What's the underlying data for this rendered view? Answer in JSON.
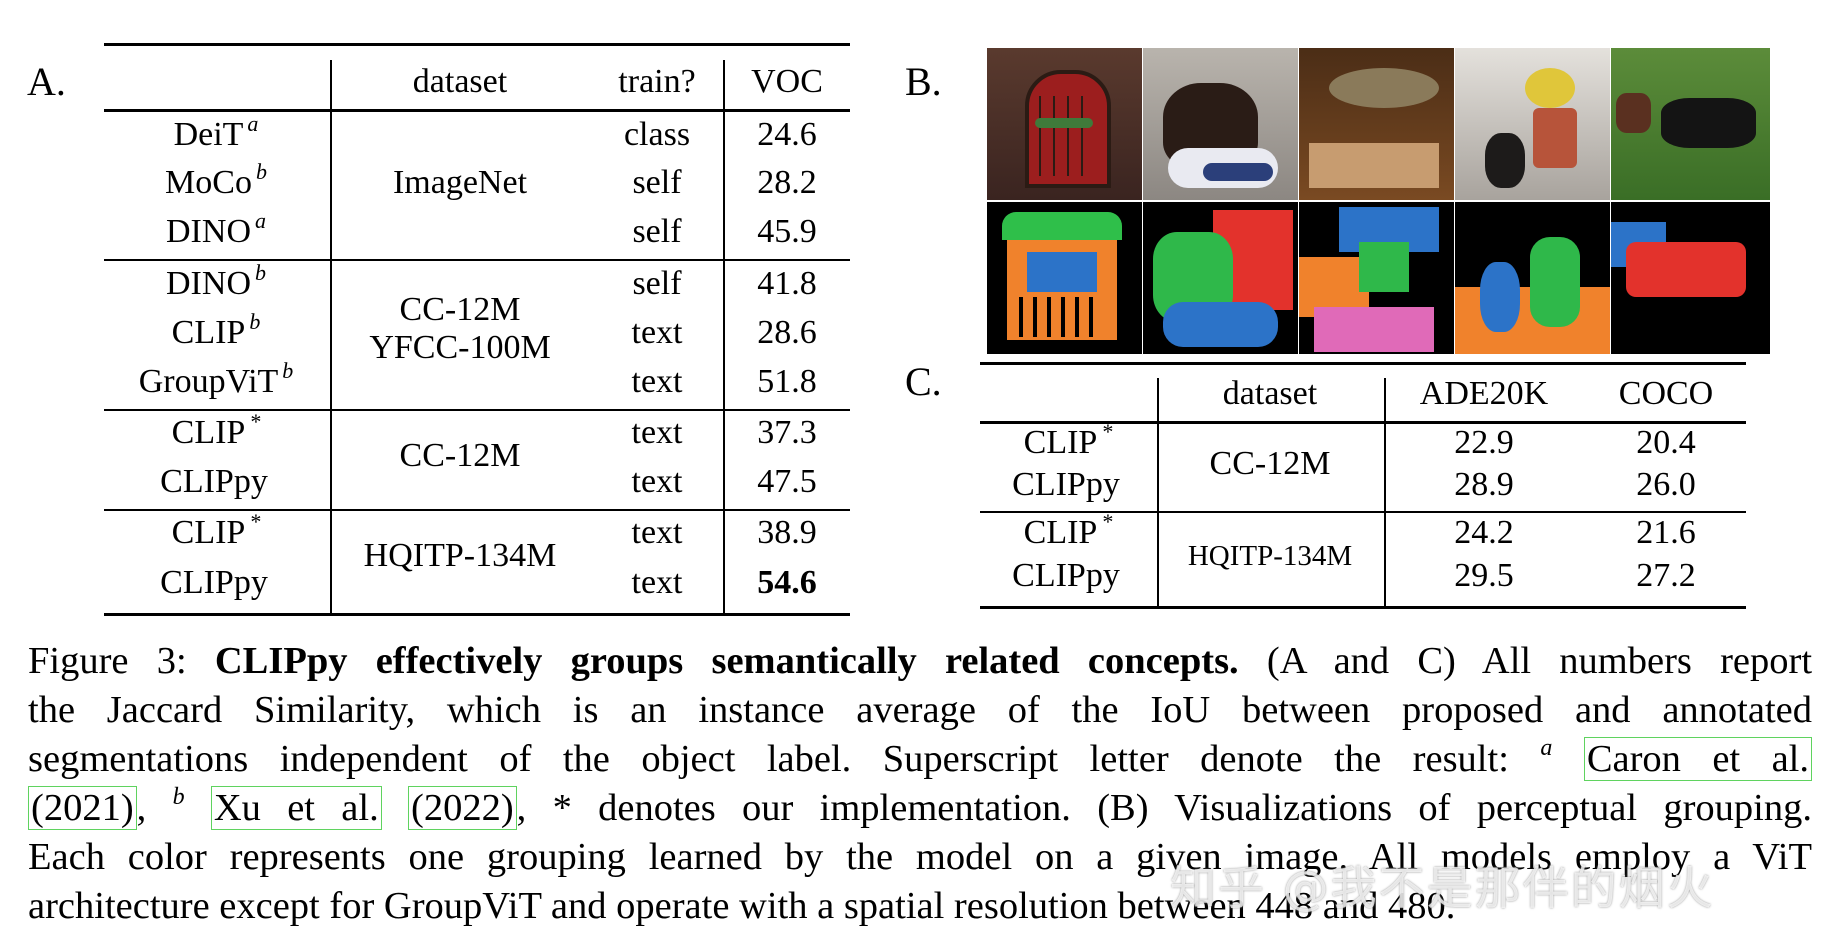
{
  "panels": {
    "a": "A.",
    "b": "B.",
    "c": "C."
  },
  "table_a": {
    "headers": {
      "dataset": "dataset",
      "train": "train?",
      "metric": "VOC"
    },
    "groups": [
      {
        "dataset": [
          "ImageNet"
        ],
        "rows": [
          {
            "model": "DeiT",
            "sup": "a",
            "train": "class",
            "voc": "24.6"
          },
          {
            "model": "MoCo",
            "sup": "b",
            "train": "self",
            "voc": "28.2"
          },
          {
            "model": "DINO",
            "sup": "a",
            "train": "self",
            "voc": "45.9"
          }
        ]
      },
      {
        "dataset": [
          "CC-12M",
          "YFCC-100M"
        ],
        "rows": [
          {
            "model": "DINO",
            "sup": "b",
            "train": "self",
            "voc": "41.8"
          },
          {
            "model": "CLIP",
            "sup": "b",
            "train": "text",
            "voc": "28.6"
          },
          {
            "model": "GroupViT",
            "sup": "b",
            "train": "text",
            "voc": "51.8"
          }
        ]
      },
      {
        "dataset": [
          "CC-12M"
        ],
        "rows": [
          {
            "model": "CLIP",
            "sup": "*",
            "train": "text",
            "voc": "37.3"
          },
          {
            "model": "CLIPpy",
            "sup": "",
            "train": "text",
            "voc": "47.5"
          }
        ]
      },
      {
        "dataset": [
          "HQITP-134M"
        ],
        "rows": [
          {
            "model": "CLIP",
            "sup": "*",
            "train": "text",
            "voc": "38.9"
          },
          {
            "model": "CLIPpy",
            "sup": "",
            "train": "text",
            "voc": "54.6"
          }
        ]
      }
    ]
  },
  "table_c": {
    "headers": {
      "dataset": "dataset",
      "ade": "ADE20K",
      "coco": "COCO"
    },
    "groups": [
      {
        "dataset": "CC-12M",
        "rows": [
          {
            "model": "CLIP",
            "sup": "*",
            "ade": "22.9",
            "coco": "20.4"
          },
          {
            "model": "CLIPpy",
            "sup": "",
            "ade": "28.9",
            "coco": "26.0"
          }
        ]
      },
      {
        "dataset": "HQITP-134M",
        "rows": [
          {
            "model": "CLIP",
            "sup": "*",
            "ade": "24.2",
            "coco": "21.6"
          },
          {
            "model": "CLIPpy",
            "sup": "",
            "ade": "29.5",
            "coco": "27.2"
          }
        ]
      }
    ]
  },
  "caption": {
    "fig": "Figure 3:",
    "title": "CLIPpy effectively groups semantically related concepts.",
    "l1_rest": "(A and C) All numbers report",
    "l2": "the Jaccard Similarity, which is an instance average of the IoU between proposed and annotated",
    "l3_pre": "segmentations independent of the object label. Superscript letter denote the result:",
    "sup_a": "a",
    "cite1_a": "Caron et al.",
    "cite1_b": "(2021)",
    "sup_b": "b",
    "cite2_a": "Xu et al.",
    "cite2_b": "(2022)",
    "l4_rest": ", * denotes our implementation. (B) Visualizations of perceptual grouping.",
    "l5": "Each color represents one grouping learned by the model on a given image. All models employ a ViT",
    "l6": "architecture except for GroupViT and operate with a spatial resolution between 448 and 480."
  },
  "watermark": "知乎 @我不是那伴的烟火"
}
